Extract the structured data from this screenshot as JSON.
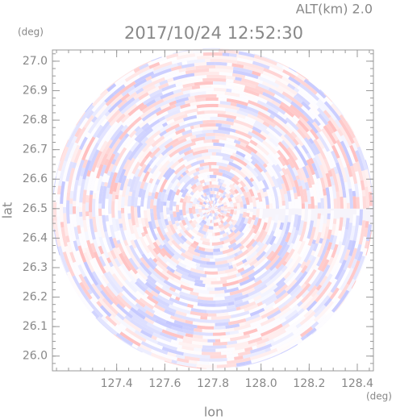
{
  "chart_data": {
    "type": "polar-field",
    "title": "2017/10/24 12:52:30",
    "annotation": "ALT(km) 2.0",
    "x_label": "lon",
    "y_label": "lat",
    "x_unit": "(deg)",
    "y_unit": "(deg)",
    "xlim": [
      127.133,
      128.467
    ],
    "ylim": [
      25.95,
      27.038
    ],
    "xticks": [
      127.4,
      127.6,
      127.8,
      {
        "value": 128.0,
        "label": "128.0"
      },
      128.2,
      128.4
    ],
    "yticks": [
      {
        "value": 26.0,
        "label": "26.0"
      },
      26.1,
      26.2,
      26.3,
      26.4,
      26.5,
      26.6,
      26.7,
      26.8,
      26.9,
      {
        "value": 27.0,
        "label": "27.0"
      }
    ],
    "center": [
      127.8,
      26.5
    ]
  }
}
